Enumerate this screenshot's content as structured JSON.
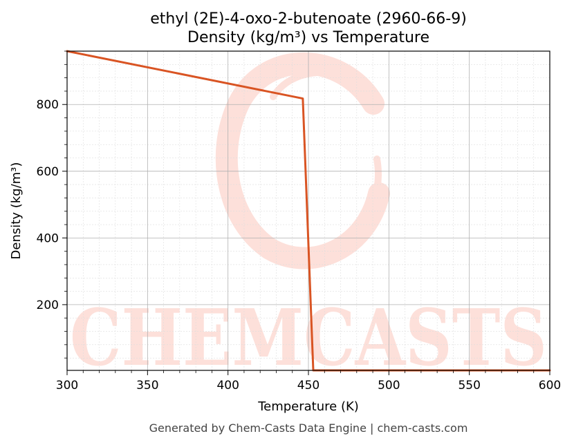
{
  "chart_data": {
    "type": "line",
    "title": "ethyl (2E)-4-oxo-2-butenoate (2960-66-9)",
    "subtitle": "Density (kg/m³) vs Temperature",
    "xlabel": "Temperature (K)",
    "ylabel": "Density (kg/m³)",
    "xlim": [
      300,
      600
    ],
    "ylim": [
      3,
      960
    ],
    "x_ticks": [
      300,
      350,
      400,
      450,
      500,
      550,
      600
    ],
    "y_ticks": [
      200,
      400,
      600,
      800
    ],
    "grid": true,
    "minor_grid": true,
    "legend": "none",
    "series": [
      {
        "color": "#d95423",
        "x": [
          300,
          446.5,
          453,
          600
        ],
        "y": [
          960,
          818,
          3,
          3
        ]
      }
    ]
  },
  "watermark": {
    "text": "CHEMCASTS",
    "color": "#fde0da"
  },
  "footer": "Generated by Chem-Casts Data Engine | chem-casts.com"
}
